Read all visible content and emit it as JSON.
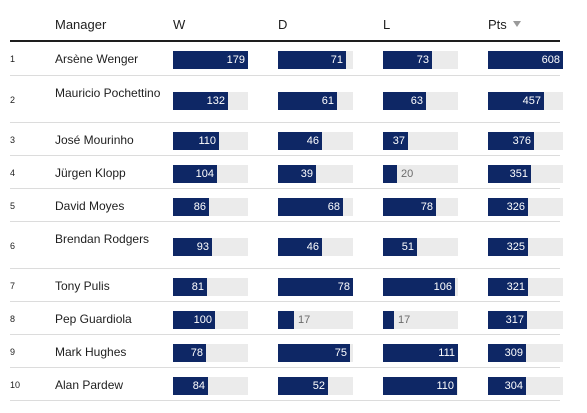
{
  "header": {
    "manager": "Manager",
    "w": "W",
    "d": "D",
    "l": "L",
    "pts": "Pts",
    "sort_icon": "triangle-down-icon"
  },
  "colors": {
    "bar_fill": "#0e2765",
    "bar_track": "#ebebeb",
    "divider": "#dcdcdc"
  },
  "scale_max": {
    "w": 179,
    "d": 78,
    "l": 111,
    "pts": 608
  },
  "rows": [
    {
      "rank": "1",
      "manager": "Arsène Wenger",
      "w": 179,
      "d": 71,
      "l": 73,
      "pts": 608
    },
    {
      "rank": "2",
      "manager": "Mauricio Pochettino",
      "w": 132,
      "d": 61,
      "l": 63,
      "pts": 457
    },
    {
      "rank": "3",
      "manager": "José Mourinho",
      "w": 110,
      "d": 46,
      "l": 37,
      "pts": 376
    },
    {
      "rank": "4",
      "manager": "Jürgen Klopp",
      "w": 104,
      "d": 39,
      "l": 20,
      "pts": 351
    },
    {
      "rank": "5",
      "manager": "David Moyes",
      "w": 86,
      "d": 68,
      "l": 78,
      "pts": 326
    },
    {
      "rank": "6",
      "manager": "Brendan Rodgers",
      "w": 93,
      "d": 46,
      "l": 51,
      "pts": 325
    },
    {
      "rank": "7",
      "manager": "Tony Pulis",
      "w": 81,
      "d": 78,
      "l": 106,
      "pts": 321
    },
    {
      "rank": "8",
      "manager": "Pep Guardiola",
      "w": 100,
      "d": 17,
      "l": 17,
      "pts": 317
    },
    {
      "rank": "9",
      "manager": "Mark Hughes",
      "w": 78,
      "d": 75,
      "l": 111,
      "pts": 309
    },
    {
      "rank": "10",
      "manager": "Alan Pardew",
      "w": 84,
      "d": 52,
      "l": 110,
      "pts": 304
    }
  ]
}
